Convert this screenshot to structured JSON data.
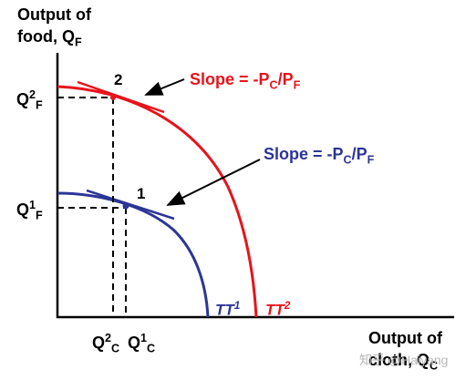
{
  "diagram": {
    "y_axis_label": {
      "line1": "Output of",
      "line2_main": "food, Q",
      "line2_sub": "F"
    },
    "x_axis_label": {
      "line1": "Output of",
      "line2_main": "cloth, Q",
      "line2_sub": "C"
    },
    "tick_q2f": {
      "main": "Q",
      "sup": "2",
      "sub": "F"
    },
    "tick_q1f": {
      "main": "Q",
      "sup": "1",
      "sub": "F"
    },
    "tick_q2c": {
      "main": "Q",
      "sup": "2",
      "sub": "C"
    },
    "tick_q1c": {
      "main": "Q",
      "sup": "1",
      "sub": "C"
    },
    "slope_top": {
      "prefix": "Slope = -P",
      "sub1": "C",
      "slash": "/P",
      "sub2": "F"
    },
    "slope_bottom": {
      "prefix": "Slope = -P",
      "sub1": "C",
      "slash": "/P",
      "sub2": "F"
    },
    "point_2": "2",
    "point_1": "1",
    "tt1": {
      "main": "TT",
      "sup": "1"
    },
    "tt2": {
      "main": "TT",
      "sup": "2"
    },
    "watermark": "知乎 @Haiyang"
  },
  "colors": {
    "red": "#e8131b",
    "blue": "#2c3596",
    "axis": "#000000"
  }
}
